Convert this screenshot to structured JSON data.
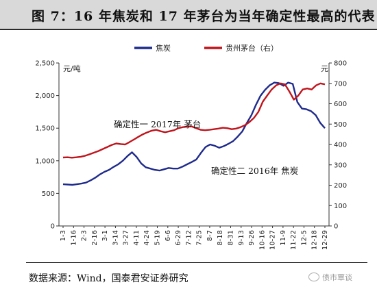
{
  "title": "图 7：16 年焦炭和 17 年茅台为当年确定性最高的代表",
  "source": "数据来源：Wind，国泰君安证券研究",
  "watermark": "债市覃谈",
  "chart_data": {
    "type": "line",
    "legend_position": "top",
    "grid": false,
    "left_axis": {
      "unit": "元/吨",
      "ticks": [
        "0",
        "500",
        "1,000",
        "1,500",
        "2,000",
        "2,500"
      ],
      "range": [
        0,
        2500
      ]
    },
    "right_axis": {
      "unit": "元",
      "ticks": [
        "0",
        "100",
        "200",
        "300",
        "400",
        "500",
        "600",
        "700",
        "800"
      ],
      "range": [
        0,
        800
      ]
    },
    "x_tick_labels": [
      "1-3",
      "1-16",
      "2-3",
      "2-16",
      "3-1",
      "3-14",
      "3-27",
      "4-11",
      "4-24",
      "5-19",
      "6-6",
      "6-29",
      "7-12",
      "7-25",
      "8-7",
      "8-18",
      "8-31",
      "9-13",
      "9-26",
      "10-16",
      "10-27",
      "11-9",
      "11-22",
      "12-5",
      "12-18",
      "12-29"
    ],
    "series": [
      {
        "name": "焦炭",
        "axis": "left",
        "color": "#1f2b8c",
        "values": [
          640,
          635,
          630,
          640,
          650,
          665,
          700,
          740,
          790,
          830,
          860,
          905,
          945,
          1000,
          1070,
          1130,
          1060,
          960,
          900,
          880,
          860,
          850,
          870,
          890,
          880,
          880,
          910,
          945,
          980,
          1020,
          1120,
          1210,
          1250,
          1230,
          1200,
          1225,
          1260,
          1300,
          1370,
          1450,
          1580,
          1700,
          1860,
          2000,
          2090,
          2160,
          2200,
          2190,
          2150,
          2200,
          2180,
          1900,
          1800,
          1790,
          1760,
          1700,
          1580,
          1500
        ]
      },
      {
        "name": "贵州茅台（右）",
        "axis": "right",
        "color": "#c0141c",
        "values": [
          336,
          337,
          335,
          337,
          340,
          345,
          352,
          360,
          368,
          378,
          388,
          398,
          405,
          402,
          400,
          412,
          425,
          438,
          450,
          460,
          468,
          472,
          465,
          460,
          465,
          470,
          480,
          485,
          488,
          488,
          480,
          472,
          470,
          472,
          475,
          478,
          482,
          480,
          475,
          478,
          485,
          495,
          510,
          530,
          560,
          610,
          640,
          670,
          690,
          700,
          695,
          660,
          620,
          640,
          670,
          675,
          670,
          690,
          700,
          695
        ]
      }
    ],
    "annotations": [
      {
        "text": "确定性一 2017年 茅台"
      },
      {
        "text": "确定性二 2016年 焦炭"
      }
    ]
  }
}
